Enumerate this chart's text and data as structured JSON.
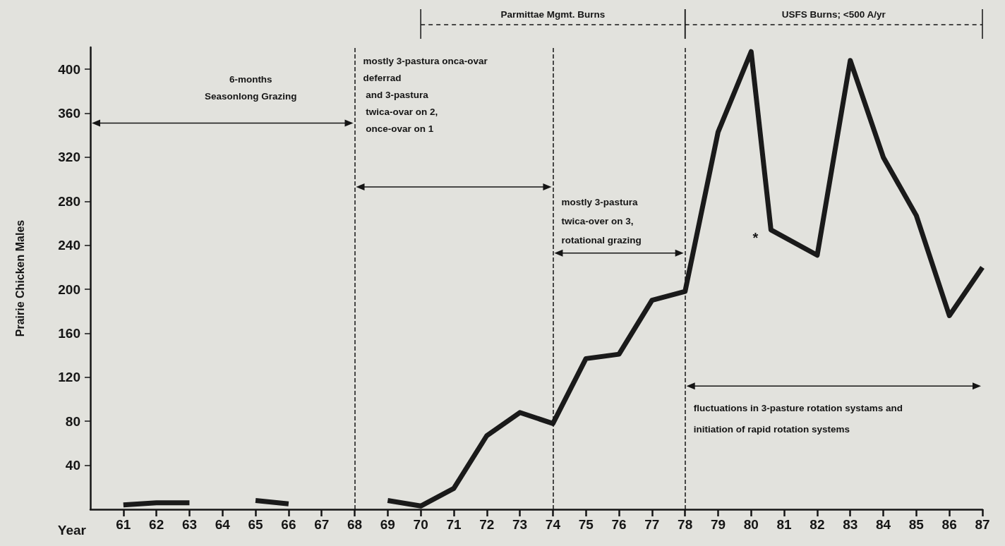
{
  "chart_data": {
    "type": "line",
    "ylabel": "Prairie Chicken Males",
    "xlabel": "Year",
    "x": [
      61,
      62,
      63,
      64,
      65,
      66,
      67,
      68,
      69,
      70,
      71,
      72,
      73,
      74,
      75,
      76,
      77,
      78,
      79,
      80,
      80.6,
      82,
      83,
      84,
      85,
      86,
      87
    ],
    "values": [
      4,
      6,
      6,
      null,
      8,
      5,
      null,
      null,
      8,
      3,
      19,
      67,
      88,
      78,
      137,
      141,
      190,
      198,
      343,
      416,
      254,
      231,
      408,
      320,
      267,
      176,
      220
    ],
    "color": "#1a1a1a",
    "marker": "none",
    "line_style": "solid",
    "grid": false,
    "xlim": [
      60,
      87
    ],
    "xticks": [
      61,
      62,
      63,
      64,
      65,
      66,
      67,
      68,
      69,
      70,
      71,
      72,
      73,
      74,
      75,
      76,
      77,
      78,
      79,
      80,
      81,
      82,
      83,
      84,
      85,
      86,
      87
    ],
    "ylim": [
      0,
      420
    ],
    "yticks": [
      40,
      80,
      120,
      160,
      200,
      240,
      280,
      320,
      360,
      400
    ],
    "ref_lines": [
      {
        "axis": "x",
        "value": 68,
        "line_style": "dashed"
      },
      {
        "axis": "x",
        "value": 74,
        "line_style": "dashed"
      },
      {
        "axis": "x",
        "value": 78,
        "line_style": "dashed"
      }
    ],
    "annotations": [
      "6-months\nSeasonlong Grazing",
      "mostly 3-pastura onca-ovar\ndeferrad\n and 3-pastura\n twica-ovar on 2,\n once-ovar on 1",
      "mostly 3-pastura\ntwica-over on 3,\nrotational grazing",
      "fluctuations in 3-pasture rotation systams and\ninitiation of rapid rotation systems",
      "Parmittae Mgmt. Burns",
      "USFS Burns; <500 A/yr",
      "*"
    ]
  }
}
